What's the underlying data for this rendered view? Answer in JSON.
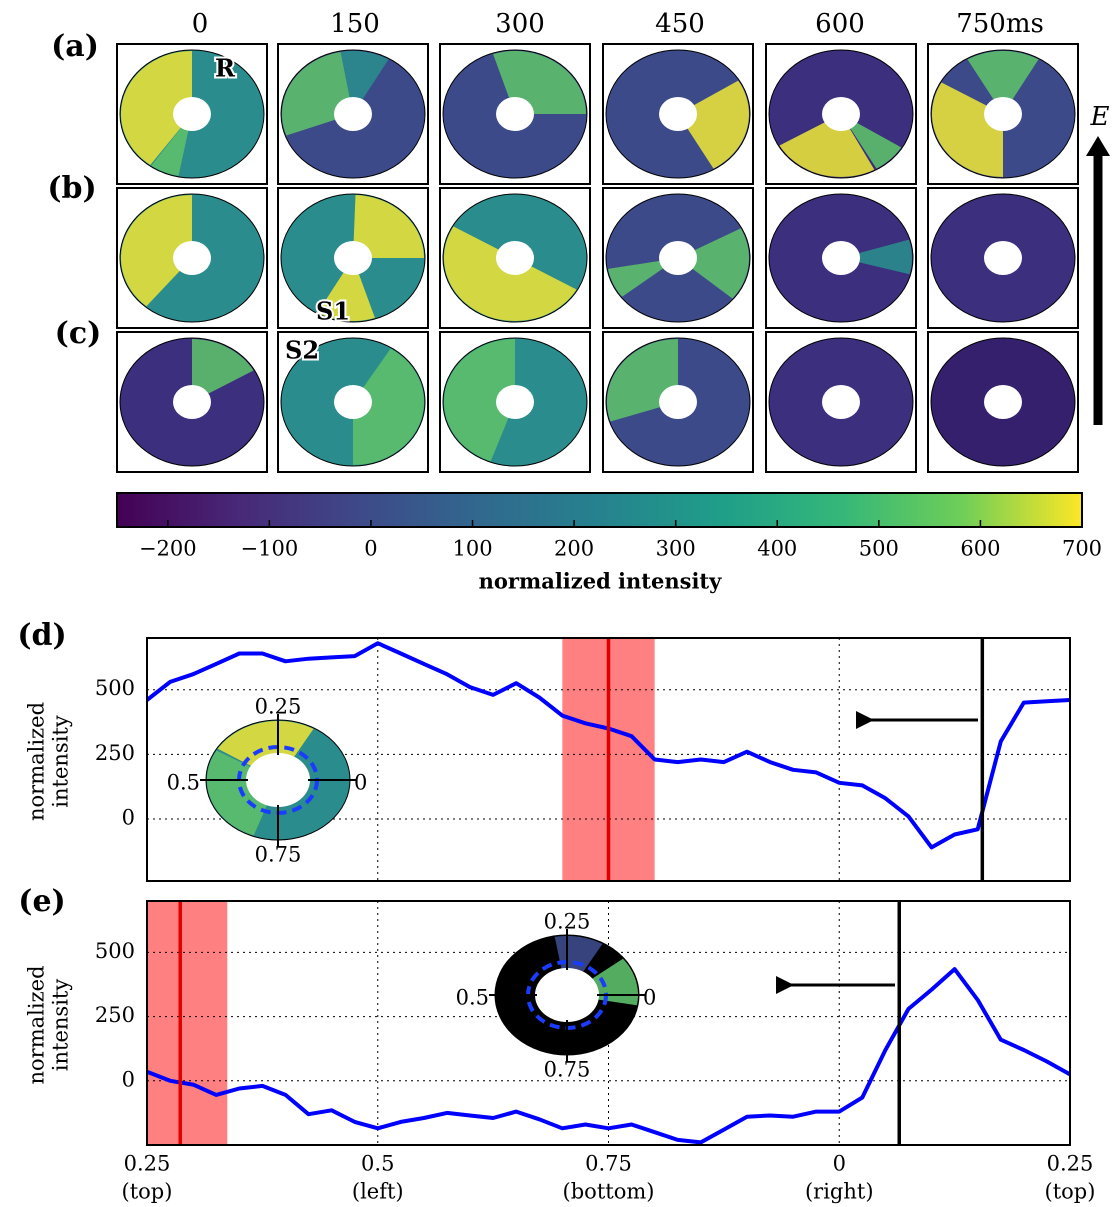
{
  "panel_labels": [
    "(a)",
    "(b)",
    "(c)"
  ],
  "columns": [
    "0",
    "150",
    "300",
    "450",
    "600",
    "750ms"
  ],
  "annotations": [
    "R",
    "S1",
    "S2"
  ],
  "field_label": "E",
  "colorbar": {
    "lim": [
      -250,
      700
    ],
    "ticks": [
      {
        "value": -200,
        "label": "−200"
      },
      {
        "value": -100,
        "label": "−100"
      },
      0,
      100,
      200,
      300,
      400,
      500,
      600,
      700
    ],
    "label": "normalized intensity"
  },
  "chart_data": [
    {
      "type": "line",
      "panel_label": "(d)",
      "ylabel": [
        "normalized",
        "intensity"
      ],
      "x": [
        0.25,
        0.275,
        0.3,
        0.325,
        0.35,
        0.375,
        0.4,
        0.425,
        0.45,
        0.475,
        0.5,
        0.525,
        0.55,
        0.575,
        0.6,
        0.625,
        0.65,
        0.675,
        0.7,
        0.725,
        0.75,
        0.775,
        0.8,
        0.825,
        0.85,
        0.875,
        0.9,
        0.925,
        0.95,
        0.975,
        1.0,
        1.025,
        1.05,
        1.075,
        1.1,
        1.125,
        1.15,
        1.175,
        1.2,
        1.225,
        1.25
      ],
      "series": [
        {
          "color": "#0000ff",
          "values": [
            460,
            530,
            560,
            600,
            640,
            640,
            610,
            620,
            625,
            630,
            680,
            640,
            600,
            560,
            510,
            480,
            525,
            470,
            400,
            370,
            350,
            320,
            230,
            220,
            230,
            220,
            260,
            220,
            190,
            180,
            140,
            130,
            80,
            10,
            -110,
            -60,
            -40,
            300,
            450,
            455,
            460
          ]
        }
      ],
      "xlim": [
        0.25,
        1.25
      ],
      "xticks": [
        0.25,
        0.5,
        0.75,
        1,
        1.25
      ],
      "ylim": [
        -240,
        700
      ],
      "yticks": [
        0,
        250,
        500
      ],
      "grid": true,
      "vlines": [
        {
          "x": 1.155,
          "color": "#000000"
        },
        {
          "x": 0.75,
          "color": "#e00000"
        }
      ],
      "spans": [
        [
          0.7,
          0.8
        ]
      ],
      "inset_labels": [
        "0.25",
        "0.5",
        "0",
        "0.75"
      ]
    },
    {
      "type": "line",
      "panel_label": "(e)",
      "ylabel": [
        "normalized",
        "intensity"
      ],
      "x": [
        0.25,
        0.275,
        0.3,
        0.325,
        0.35,
        0.375,
        0.4,
        0.425,
        0.45,
        0.475,
        0.5,
        0.525,
        0.55,
        0.575,
        0.6,
        0.625,
        0.65,
        0.675,
        0.7,
        0.725,
        0.75,
        0.775,
        0.8,
        0.825,
        0.85,
        0.875,
        0.9,
        0.925,
        0.95,
        0.975,
        1.0,
        1.025,
        1.05,
        1.075,
        1.1,
        1.125,
        1.15,
        1.175,
        1.2,
        1.225,
        1.25
      ],
      "series": [
        {
          "color": "#0000ff",
          "values": [
            35,
            0,
            -15,
            -55,
            -30,
            -20,
            -55,
            -130,
            -115,
            -160,
            -185,
            -160,
            -145,
            -125,
            -135,
            -145,
            -120,
            -150,
            -185,
            -170,
            -185,
            -170,
            -200,
            -230,
            -240,
            -190,
            -140,
            -135,
            -140,
            -120,
            -120,
            -65,
            120,
            280,
            355,
            435,
            315,
            160,
            120,
            75,
            25
          ]
        }
      ],
      "xlim": [
        0.25,
        1.25
      ],
      "xticks": [
        0.25,
        0.5,
        0.75,
        {
          "value": 1,
          "label": "0"
        },
        {
          "value": 1.25,
          "label": "0.25"
        }
      ],
      "xtick_sublabels": [
        "(top)",
        "(left)",
        "(bottom)",
        "(right)",
        "(top)"
      ],
      "ylim": [
        -250,
        700
      ],
      "yticks": [
        0,
        250,
        500
      ],
      "grid": true,
      "vlines": [
        {
          "x": 1.065,
          "color": "#000000"
        },
        {
          "x": 0.286,
          "color": "#e00000"
        }
      ],
      "spans": [
        [
          0.25,
          0.337
        ]
      ],
      "inset_labels": [
        "0.25",
        "0.5",
        "0",
        "0.75"
      ]
    }
  ]
}
